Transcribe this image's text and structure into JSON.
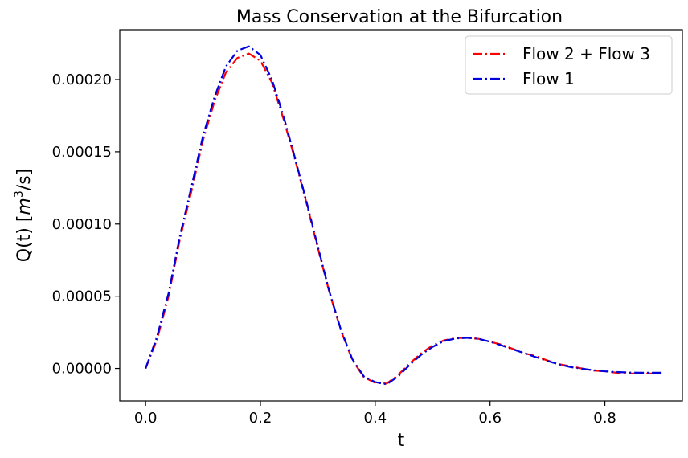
{
  "chart_data": {
    "type": "line",
    "title": "Mass Conservation at the Bifurcation",
    "xlabel": "t",
    "ylabel_prefix": "Q(t) [",
    "ylabel_var": "m",
    "ylabel_exp": "3",
    "ylabel_suffix": "/s]",
    "xlim": [
      -0.045,
      0.935
    ],
    "ylim": [
      -2.25e-05,
      0.0002345
    ],
    "xticks": [
      0.0,
      0.2,
      0.4,
      0.6,
      0.8
    ],
    "xtick_labels": [
      "0.0",
      "0.2",
      "0.4",
      "0.6",
      "0.8"
    ],
    "yticks": [
      0.0,
      5e-05,
      0.0001,
      0.00015,
      0.0002
    ],
    "ytick_labels": [
      "0.00000",
      "0.00005",
      "0.00010",
      "0.00015",
      "0.00020"
    ],
    "grid": false,
    "legend_position": "top-right",
    "series": [
      {
        "name": "Flow 2 + Flow 3",
        "color": "#ff0000",
        "dash": "dashdot",
        "x": [
          0.0,
          0.02,
          0.04,
          0.06,
          0.08,
          0.1,
          0.12,
          0.14,
          0.16,
          0.18,
          0.2,
          0.22,
          0.24,
          0.26,
          0.28,
          0.3,
          0.32,
          0.34,
          0.36,
          0.38,
          0.4,
          0.42,
          0.44,
          0.46,
          0.48,
          0.5,
          0.52,
          0.54,
          0.56,
          0.58,
          0.6,
          0.62,
          0.64,
          0.66,
          0.68,
          0.7,
          0.72,
          0.74,
          0.76,
          0.78,
          0.8,
          0.82,
          0.84,
          0.86,
          0.88,
          0.9
        ],
        "y": [
          0.0,
          2e-05,
          5e-05,
          9e-05,
          0.000123,
          0.000158,
          0.000185,
          0.000205,
          0.000215,
          0.000218,
          0.000213,
          0.000198,
          0.000173,
          0.000145,
          0.000115,
          8.35e-05,
          5.3e-05,
          2.65e-05,
          6e-06,
          -6e-06,
          -1e-05,
          -1.05e-05,
          -4.5e-06,
          3.5e-06,
          1.05e-05,
          1.6e-05,
          1.95e-05,
          2.1e-05,
          2.12e-05,
          2.05e-05,
          1.85e-05,
          1.65e-05,
          1.35e-05,
          1.05e-05,
          8.5e-06,
          5.5e-06,
          3e-06,
          1.5e-06,
          0.0,
          -1.5e-06,
          -2e-06,
          -3e-06,
          -3.5e-06,
          -3.5e-06,
          -3.5e-06,
          -3e-06
        ]
      },
      {
        "name": "Flow 1",
        "color": "#0000dd",
        "dash": "dashdot",
        "x": [
          0.0,
          0.02,
          0.04,
          0.06,
          0.08,
          0.1,
          0.12,
          0.14,
          0.16,
          0.18,
          0.2,
          0.22,
          0.24,
          0.26,
          0.28,
          0.3,
          0.32,
          0.34,
          0.36,
          0.38,
          0.4,
          0.42,
          0.44,
          0.46,
          0.48,
          0.5,
          0.52,
          0.54,
          0.56,
          0.58,
          0.6,
          0.62,
          0.64,
          0.66,
          0.68,
          0.7,
          0.72,
          0.74,
          0.76,
          0.78,
          0.8,
          0.82,
          0.84,
          0.86,
          0.88,
          0.9
        ],
        "y": [
          0.0,
          2.2e-05,
          5.2e-05,
          9.2e-05,
          0.000126,
          0.000161,
          0.000188,
          0.000209,
          0.00022,
          0.000223,
          0.000217,
          0.0002,
          0.000175,
          0.000146,
          0.000116,
          8.45e-05,
          5.35e-05,
          2.7e-05,
          6.5e-06,
          -5.5e-06,
          -9.5e-06,
          -1.1e-05,
          -5.5e-06,
          2.5e-06,
          9.5e-06,
          1.5e-05,
          1.9e-05,
          2.08e-05,
          2.12e-05,
          2.05e-05,
          1.85e-05,
          1.6e-05,
          1.32e-05,
          1.05e-05,
          7.8e-06,
          5.2e-06,
          2.8e-06,
          1e-06,
          -2e-07,
          -1.2e-06,
          -2e-06,
          -2.5e-06,
          -2.8e-06,
          -3e-06,
          -3e-06,
          -3e-06
        ]
      }
    ]
  }
}
